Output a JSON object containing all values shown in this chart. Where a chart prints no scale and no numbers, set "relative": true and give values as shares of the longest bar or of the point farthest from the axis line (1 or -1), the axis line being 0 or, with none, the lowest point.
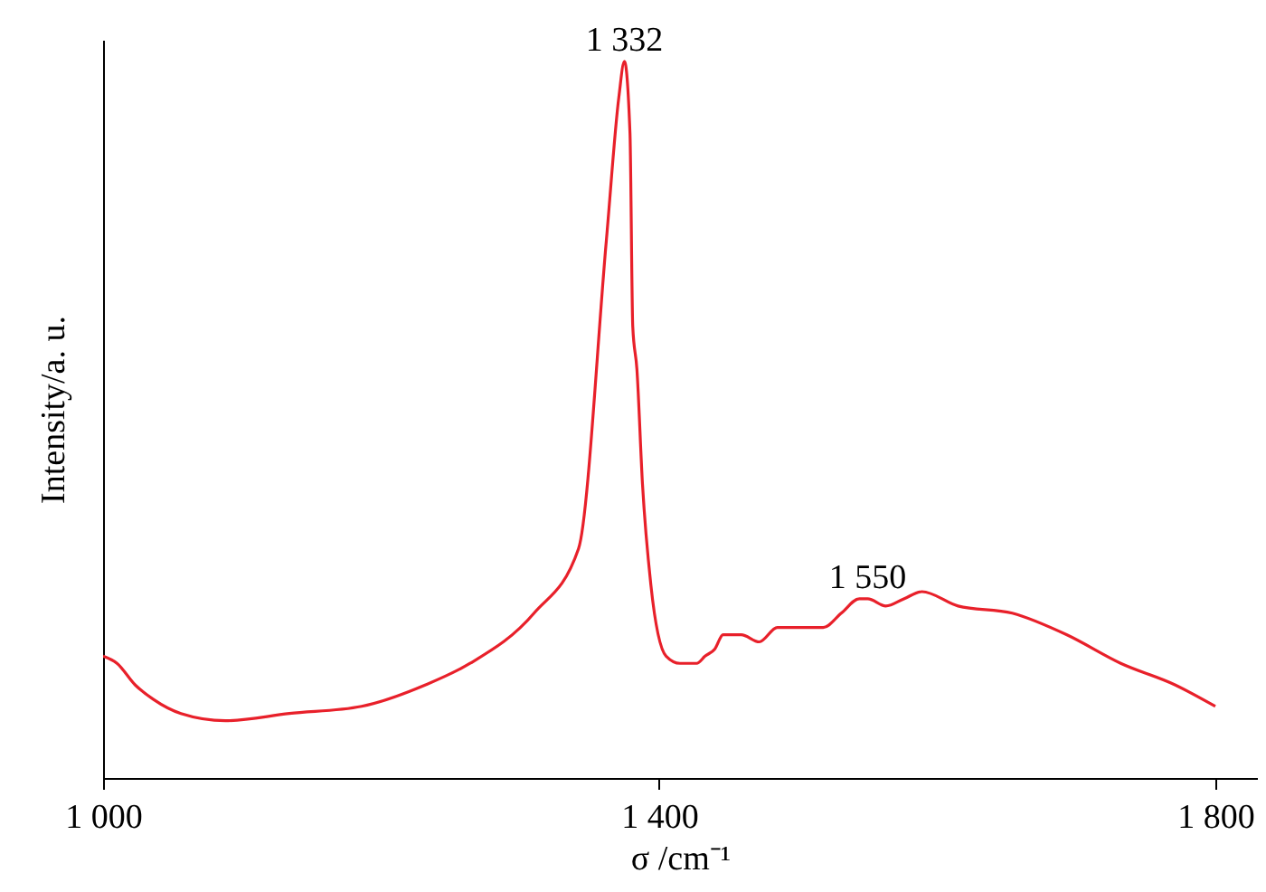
{
  "chart_data": {
    "type": "line",
    "relative": true,
    "xlabel": "σ /cm⁻¹",
    "ylabel": "Intensity/a. u.",
    "xlim": [
      1000,
      1830
    ],
    "xticks": [
      {
        "value": 1000,
        "label": "1 000"
      },
      {
        "value": 1400,
        "label": "1 400"
      },
      {
        "value": 1800,
        "label": "1 800"
      }
    ],
    "x": [
      1000,
      1010,
      1023,
      1036,
      1056,
      1088,
      1134,
      1186,
      1232,
      1264,
      1310,
      1342,
      1362,
      1371,
      1375,
      1379,
      1381,
      1384,
      1388,
      1394,
      1405,
      1415,
      1427,
      1433,
      1440,
      1446,
      1459,
      1472,
      1485,
      1498,
      1518,
      1531,
      1544,
      1550,
      1563,
      1576,
      1589,
      1615,
      1654,
      1693,
      1732,
      1771,
      1800
    ],
    "series": [
      {
        "color": "#e8202a",
        "values": [
          0.17,
          0.16,
          0.13,
          0.11,
          0.09,
          0.08,
          0.09,
          0.1,
          0.13,
          0.16,
          0.23,
          0.32,
          0.75,
          0.95,
          1,
          0.9,
          0.63,
          0.57,
          0.41,
          0.27,
          0.17,
          0.16,
          0.16,
          0.17,
          0.18,
          0.2,
          0.2,
          0.19,
          0.21,
          0.21,
          0.21,
          0.23,
          0.25,
          0.25,
          0.24,
          0.25,
          0.26,
          0.24,
          0.23,
          0.2,
          0.16,
          0.13,
          0.1
        ]
      }
    ],
    "annotations": [
      {
        "text": "1 332",
        "x": 1375,
        "y": 1
      },
      {
        "text": "1 550",
        "x": 1550,
        "y": 0.25
      }
    ],
    "grid": false
  }
}
